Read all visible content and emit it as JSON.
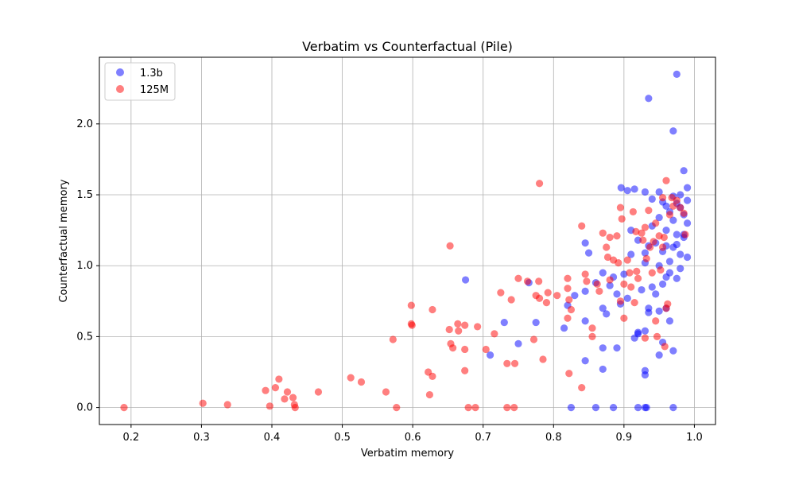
{
  "chart_data": {
    "type": "scatter",
    "title": "Verbatim vs Counterfactual (Pile)",
    "xlabel": "Verbatim memory",
    "ylabel": "Counterfactual memory",
    "xlim": [
      0.155,
      1.03
    ],
    "ylim": [
      -0.12,
      2.47
    ],
    "xticks": [
      "0.2",
      "0.3",
      "0.4",
      "0.5",
      "0.6",
      "0.7",
      "0.8",
      "0.9",
      "1.0"
    ],
    "yticks": [
      "0.0",
      "0.5",
      "1.0",
      "1.5",
      "2.0"
    ],
    "grid": true,
    "legend_position": "top-left",
    "series": [
      {
        "name": "1.3b",
        "color": "#0000ff",
        "points": [
          [
            0.975,
            2.35
          ],
          [
            0.935,
            2.18
          ],
          [
            0.97,
            1.95
          ],
          [
            0.985,
            1.67
          ],
          [
            0.896,
            1.55
          ],
          [
            0.915,
            1.54
          ],
          [
            0.93,
            1.52
          ],
          [
            0.95,
            1.52
          ],
          [
            0.97,
            1.49
          ],
          [
            0.98,
            1.5
          ],
          [
            0.99,
            1.55
          ],
          [
            0.905,
            1.53
          ],
          [
            0.94,
            1.47
          ],
          [
            0.955,
            1.45
          ],
          [
            0.96,
            1.42
          ],
          [
            0.975,
            1.44
          ],
          [
            0.99,
            1.46
          ],
          [
            0.965,
            1.38
          ],
          [
            0.985,
            1.36
          ],
          [
            0.95,
            1.34
          ],
          [
            0.97,
            1.32
          ],
          [
            0.99,
            1.3
          ],
          [
            0.94,
            1.28
          ],
          [
            0.96,
            1.25
          ],
          [
            0.975,
            1.22
          ],
          [
            0.985,
            1.2
          ],
          [
            0.92,
            1.18
          ],
          [
            0.945,
            1.16
          ],
          [
            0.96,
            1.14
          ],
          [
            0.975,
            1.15
          ],
          [
            0.98,
            1.08
          ],
          [
            0.99,
            1.06
          ],
          [
            0.845,
            1.16
          ],
          [
            0.85,
            1.09
          ],
          [
            0.91,
            1.25
          ],
          [
            0.935,
            1.14
          ],
          [
            0.955,
            1.1
          ],
          [
            0.965,
            1.03
          ],
          [
            0.98,
            0.98
          ],
          [
            0.91,
            1.08
          ],
          [
            0.93,
            1.02
          ],
          [
            0.95,
            1.0
          ],
          [
            0.965,
            0.95
          ],
          [
            0.975,
            0.91
          ],
          [
            0.955,
            0.87
          ],
          [
            0.94,
            0.85
          ],
          [
            0.925,
            0.83
          ],
          [
            0.905,
            0.77
          ],
          [
            0.945,
            0.8
          ],
          [
            0.96,
            0.7
          ],
          [
            0.95,
            0.68
          ],
          [
            0.935,
            0.67
          ],
          [
            0.885,
            0.92
          ],
          [
            0.87,
            0.95
          ],
          [
            0.88,
            0.86
          ],
          [
            0.86,
            0.88
          ],
          [
            0.89,
            0.8
          ],
          [
            0.895,
            0.73
          ],
          [
            0.87,
            0.7
          ],
          [
            0.875,
            0.66
          ],
          [
            0.765,
            0.88
          ],
          [
            0.675,
            0.9
          ],
          [
            0.845,
            0.82
          ],
          [
            0.83,
            0.79
          ],
          [
            0.82,
            0.72
          ],
          [
            0.775,
            0.6
          ],
          [
            0.73,
            0.6
          ],
          [
            0.815,
            0.56
          ],
          [
            0.845,
            0.61
          ],
          [
            0.92,
            0.53
          ],
          [
            0.93,
            0.54
          ],
          [
            0.915,
            0.49
          ],
          [
            0.965,
            0.61
          ],
          [
            0.955,
            0.46
          ],
          [
            0.97,
            0.4
          ],
          [
            0.95,
            0.37
          ],
          [
            0.87,
            0.42
          ],
          [
            0.89,
            0.42
          ],
          [
            0.75,
            0.45
          ],
          [
            0.71,
            0.37
          ],
          [
            0.845,
            0.33
          ],
          [
            0.87,
            0.27
          ],
          [
            0.93,
            0.26
          ],
          [
            0.93,
            0.23
          ],
          [
            0.825,
            0.0
          ],
          [
            0.86,
            0.0
          ],
          [
            0.885,
            0.0
          ],
          [
            0.92,
            0.0
          ],
          [
            0.93,
            0.0
          ],
          [
            0.932,
            0.0
          ],
          [
            0.97,
            0.0
          ],
          [
            0.92,
            0.52
          ],
          [
            0.935,
            0.7
          ],
          [
            0.96,
            0.92
          ],
          [
            0.98,
            1.41
          ],
          [
            0.985,
            1.22
          ],
          [
            0.97,
            1.13
          ],
          [
            0.93,
            1.09
          ],
          [
            0.9,
            0.94
          ]
        ]
      },
      {
        "name": "125M",
        "color": "#ff0000",
        "points": [
          [
            0.19,
            0.0
          ],
          [
            0.302,
            0.03
          ],
          [
            0.337,
            0.02
          ],
          [
            0.391,
            0.12
          ],
          [
            0.397,
            0.01
          ],
          [
            0.405,
            0.14
          ],
          [
            0.41,
            0.2
          ],
          [
            0.418,
            0.06
          ],
          [
            0.422,
            0.11
          ],
          [
            0.43,
            0.07
          ],
          [
            0.432,
            0.02
          ],
          [
            0.433,
            0.0
          ],
          [
            0.466,
            0.11
          ],
          [
            0.512,
            0.21
          ],
          [
            0.527,
            0.18
          ],
          [
            0.562,
            0.11
          ],
          [
            0.572,
            0.48
          ],
          [
            0.577,
            0.0
          ],
          [
            0.598,
            0.72
          ],
          [
            0.598,
            0.59
          ],
          [
            0.599,
            0.58
          ],
          [
            0.622,
            0.25
          ],
          [
            0.624,
            0.09
          ],
          [
            0.628,
            0.22
          ],
          [
            0.628,
            0.69
          ],
          [
            0.653,
            1.14
          ],
          [
            0.652,
            0.55
          ],
          [
            0.654,
            0.45
          ],
          [
            0.657,
            0.42
          ],
          [
            0.664,
            0.59
          ],
          [
            0.665,
            0.54
          ],
          [
            0.674,
            0.58
          ],
          [
            0.674,
            0.41
          ],
          [
            0.674,
            0.26
          ],
          [
            0.679,
            0.0
          ],
          [
            0.689,
            0.0
          ],
          [
            0.692,
            0.57
          ],
          [
            0.704,
            0.41
          ],
          [
            0.716,
            0.52
          ],
          [
            0.725,
            0.81
          ],
          [
            0.734,
            0.31
          ],
          [
            0.734,
            0.0
          ],
          [
            0.74,
            0.76
          ],
          [
            0.744,
            0.0
          ],
          [
            0.745,
            0.31
          ],
          [
            0.75,
            0.91
          ],
          [
            0.763,
            0.89
          ],
          [
            0.772,
            0.48
          ],
          [
            0.775,
            0.79
          ],
          [
            0.78,
            1.58
          ],
          [
            0.779,
            0.89
          ],
          [
            0.78,
            0.77
          ],
          [
            0.785,
            0.34
          ],
          [
            0.79,
            0.74
          ],
          [
            0.792,
            0.81
          ],
          [
            0.805,
            0.79
          ],
          [
            0.82,
            0.91
          ],
          [
            0.82,
            0.84
          ],
          [
            0.822,
            0.76
          ],
          [
            0.82,
            0.63
          ],
          [
            0.825,
            0.69
          ],
          [
            0.822,
            0.24
          ],
          [
            0.84,
            1.28
          ],
          [
            0.84,
            0.14
          ],
          [
            0.845,
            0.94
          ],
          [
            0.847,
            0.89
          ],
          [
            0.855,
            0.56
          ],
          [
            0.855,
            0.5
          ],
          [
            0.862,
            0.87
          ],
          [
            0.87,
            1.23
          ],
          [
            0.875,
            1.13
          ],
          [
            0.877,
            1.06
          ],
          [
            0.88,
            1.2
          ],
          [
            0.885,
            1.04
          ],
          [
            0.89,
            1.21
          ],
          [
            0.892,
            1.02
          ],
          [
            0.895,
            0.75
          ],
          [
            0.895,
            1.41
          ],
          [
            0.897,
            1.33
          ],
          [
            0.9,
            0.63
          ],
          [
            0.905,
            1.04
          ],
          [
            0.908,
            0.95
          ],
          [
            0.91,
            0.85
          ],
          [
            0.913,
            1.38
          ],
          [
            0.915,
            0.74
          ],
          [
            0.917,
            1.24
          ],
          [
            0.92,
            0.91
          ],
          [
            0.925,
            1.23
          ],
          [
            0.927,
            1.18
          ],
          [
            0.93,
            0.49
          ],
          [
            0.932,
            1.05
          ],
          [
            0.935,
            1.39
          ],
          [
            0.937,
            1.13
          ],
          [
            0.94,
            0.95
          ],
          [
            0.942,
            1.17
          ],
          [
            0.945,
            0.61
          ],
          [
            0.947,
            0.5
          ],
          [
            0.95,
            1.21
          ],
          [
            0.952,
            0.97
          ],
          [
            0.955,
            1.48
          ],
          [
            0.957,
            1.2
          ],
          [
            0.958,
            0.43
          ],
          [
            0.96,
            1.6
          ],
          [
            0.962,
            0.73
          ],
          [
            0.965,
            1.36
          ],
          [
            0.968,
            1.48
          ],
          [
            0.97,
            1.42
          ],
          [
            0.975,
            1.46
          ],
          [
            0.98,
            1.41
          ],
          [
            0.985,
            1.37
          ],
          [
            0.987,
            1.22
          ],
          [
            0.9,
            0.87
          ],
          [
            0.88,
            0.9
          ],
          [
            0.865,
            0.82
          ],
          [
            0.945,
            1.3
          ],
          [
            0.955,
            1.13
          ],
          [
            0.96,
            0.7
          ],
          [
            0.918,
            0.96
          ],
          [
            0.93,
            1.27
          ]
        ]
      }
    ]
  }
}
